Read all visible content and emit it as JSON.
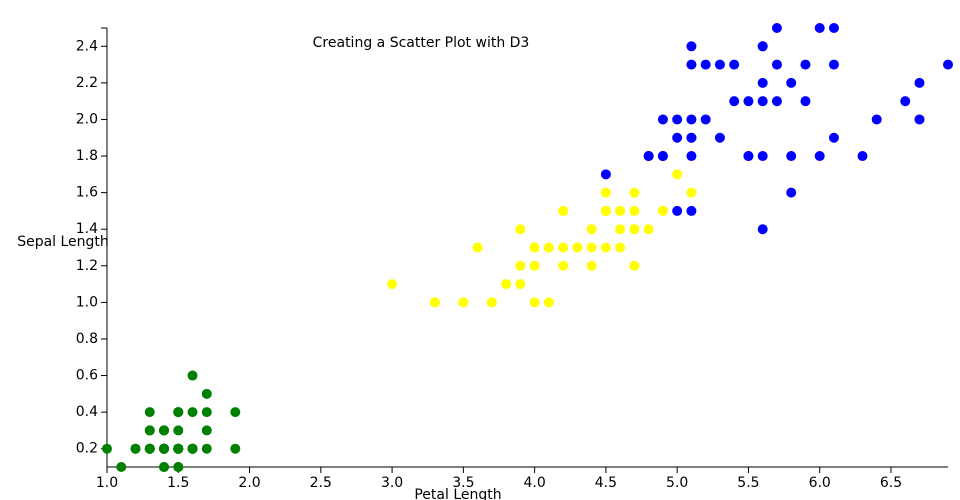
{
  "chart_data": {
    "type": "scatter",
    "title": "Creating a Scatter Plot with D3",
    "x_label": "Petal Length",
    "y_label": "Sepal Length",
    "xlim": [
      1.0,
      6.9
    ],
    "ylim": [
      0.1,
      2.5
    ],
    "xticks": [
      {
        "value": 1,
        "label": "1.0"
      },
      1.5,
      {
        "value": 2,
        "label": "2.0"
      },
      2.5,
      {
        "value": 3,
        "label": "3.0"
      },
      3.5,
      {
        "value": 4,
        "label": "4.0"
      },
      4.5,
      {
        "value": 5,
        "label": "5.0"
      },
      5.5,
      {
        "value": 6,
        "label": "6.0"
      },
      6.5
    ],
    "yticks": [
      0.2,
      0.4,
      0.6,
      0.8,
      {
        "value": 1,
        "label": "1.0"
      },
      1.2,
      1.4,
      1.6,
      1.8,
      {
        "value": 2,
        "label": "2.0"
      },
      2.2,
      2.4
    ],
    "grid": false,
    "series": [
      {
        "color": "green",
        "x": [
          1.4,
          1.4,
          1.3,
          1.5,
          1.4,
          1.7,
          1.4,
          1.5,
          1.4,
          1.5,
          1.5,
          1.6,
          1.4,
          1.1,
          1.2,
          1.5,
          1.3,
          1.4,
          1.7,
          1.5,
          1.7,
          1.5,
          1.0,
          1.7,
          1.9,
          1.6,
          1.6,
          1.5,
          1.4,
          1.6,
          1.6,
          1.5,
          1.5,
          1.4,
          1.5,
          1.2,
          1.3,
          1.4,
          1.3,
          1.5,
          1.3,
          1.3,
          1.3,
          1.6,
          1.9,
          1.4,
          1.6,
          1.4,
          1.5,
          1.4
        ],
        "values": [
          0.2,
          0.2,
          0.2,
          0.2,
          0.2,
          0.4,
          0.3,
          0.2,
          0.2,
          0.1,
          0.2,
          0.2,
          0.1,
          0.1,
          0.2,
          0.4,
          0.4,
          0.3,
          0.3,
          0.3,
          0.2,
          0.4,
          0.2,
          0.5,
          0.2,
          0.2,
          0.4,
          0.2,
          0.2,
          0.2,
          0.2,
          0.4,
          0.1,
          0.2,
          0.2,
          0.2,
          0.2,
          0.1,
          0.2,
          0.2,
          0.3,
          0.3,
          0.2,
          0.6,
          0.4,
          0.3,
          0.2,
          0.2,
          0.2,
          0.2
        ]
      },
      {
        "color": "yellow",
        "x": [
          4.7,
          4.5,
          4.9,
          4.0,
          4.6,
          4.5,
          4.7,
          3.3,
          4.6,
          3.9,
          3.5,
          4.2,
          4.0,
          4.7,
          3.6,
          4.4,
          4.5,
          4.1,
          4.5,
          3.9,
          4.8,
          4.0,
          4.9,
          4.7,
          4.3,
          4.4,
          4.8,
          5.0,
          4.5,
          3.5,
          3.8,
          3.7,
          3.9,
          5.1,
          4.5,
          4.5,
          4.7,
          4.4,
          4.1,
          4.0,
          4.4,
          4.6,
          4.0,
          3.3,
          4.2,
          4.2,
          4.2,
          4.3,
          3.0,
          4.1
        ],
        "values": [
          1.4,
          1.5,
          1.5,
          1.3,
          1.5,
          1.3,
          1.6,
          1.0,
          1.3,
          1.4,
          1.0,
          1.5,
          1.0,
          1.4,
          1.3,
          1.4,
          1.5,
          1.0,
          1.5,
          1.1,
          1.8,
          1.3,
          1.5,
          1.2,
          1.3,
          1.4,
          1.4,
          1.7,
          1.5,
          1.0,
          1.1,
          1.0,
          1.2,
          1.6,
          1.5,
          1.6,
          1.5,
          1.3,
          1.3,
          1.3,
          1.2,
          1.4,
          1.2,
          1.0,
          1.3,
          1.2,
          1.3,
          1.3,
          1.1,
          1.3
        ]
      },
      {
        "color": "blue",
        "x": [
          6.0,
          5.1,
          5.9,
          5.6,
          5.8,
          6.6,
          4.5,
          6.3,
          5.8,
          6.1,
          5.1,
          5.3,
          5.5,
          5.0,
          5.1,
          5.3,
          5.5,
          6.7,
          6.9,
          5.0,
          5.7,
          4.9,
          6.7,
          4.9,
          5.7,
          6.0,
          4.8,
          4.9,
          5.6,
          5.8,
          6.1,
          6.4,
          5.6,
          5.1,
          5.6,
          6.1,
          5.6,
          5.5,
          4.8,
          5.4,
          5.6,
          5.1,
          5.1,
          5.9,
          5.7,
          5.2,
          5.0,
          5.2,
          5.4,
          5.1
        ],
        "values": [
          2.5,
          1.9,
          2.1,
          1.8,
          2.2,
          2.1,
          1.7,
          1.8,
          1.8,
          2.5,
          2.0,
          1.9,
          2.1,
          2.0,
          2.4,
          2.3,
          1.8,
          2.2,
          2.3,
          1.5,
          2.3,
          2.0,
          2.0,
          1.8,
          2.1,
          1.8,
          1.8,
          1.8,
          2.1,
          1.6,
          1.9,
          2.0,
          2.2,
          1.5,
          1.4,
          2.3,
          2.4,
          1.8,
          1.8,
          2.1,
          2.4,
          2.3,
          1.9,
          2.3,
          2.5,
          2.3,
          1.9,
          2.0,
          2.3,
          1.8
        ]
      }
    ]
  }
}
